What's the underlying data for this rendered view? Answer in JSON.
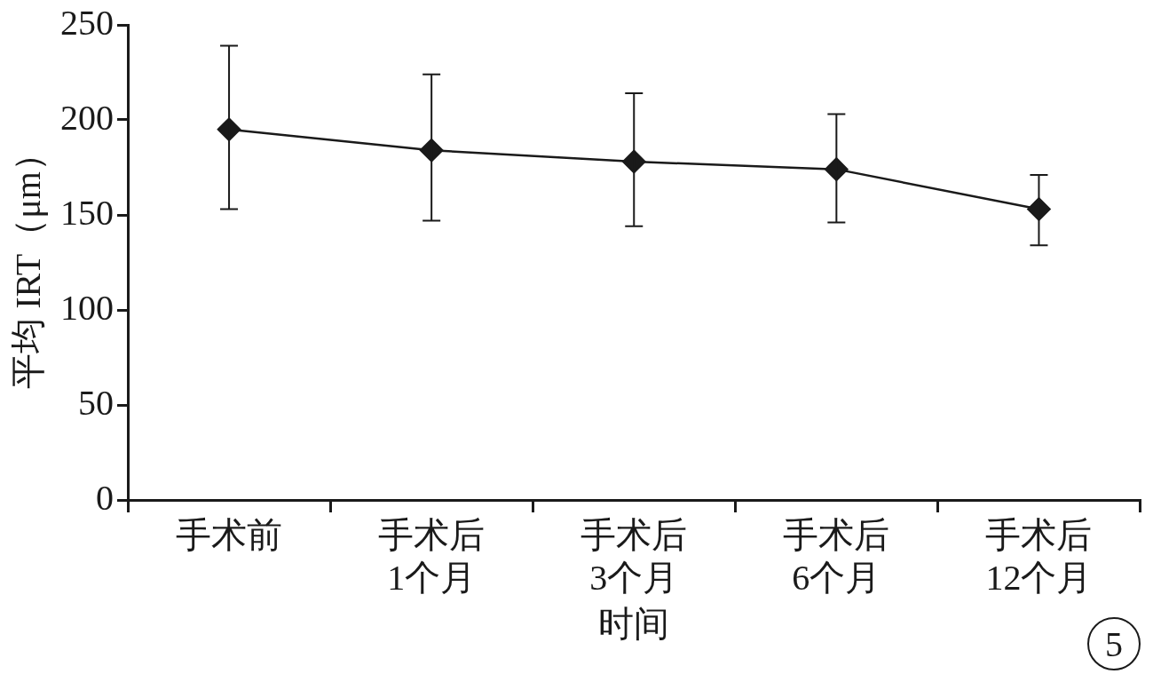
{
  "chart_data": {
    "type": "line",
    "xlabel": "时间",
    "ylabel": "平均 IRT（μm）",
    "categories": [
      "手术前",
      "手术后\n1个月",
      "手术后\n3个月",
      "手术后\n6个月",
      "手术后\n12个月"
    ],
    "series": [
      {
        "color": "#1a1a1a",
        "values": [
          195,
          184,
          178,
          174,
          153
        ],
        "errors": [
          [
            153,
            239
          ],
          [
            147,
            224
          ],
          [
            144,
            214
          ],
          [
            146,
            203
          ],
          [
            134,
            171
          ]
        ]
      }
    ],
    "ylim": [
      0,
      250
    ],
    "yticks": [
      0,
      50,
      100,
      150,
      200,
      250
    ],
    "grid": false,
    "legend": false,
    "marker": "diamond",
    "line_style": "solid",
    "annotations": [
      "5"
    ]
  }
}
